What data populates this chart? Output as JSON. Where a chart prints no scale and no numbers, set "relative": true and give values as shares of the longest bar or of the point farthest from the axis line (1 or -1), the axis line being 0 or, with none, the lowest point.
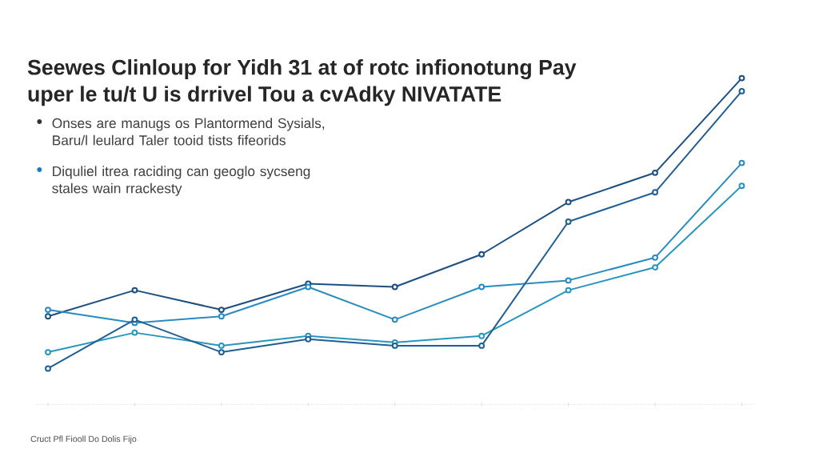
{
  "chart_data": {
    "type": "line",
    "relative": true,
    "title": "Seewes Clinloup for Yidh 31 at of rotc infionotung Pay",
    "subtitle": "uper le tu/t U is drrivel Tou a cvAdky NIVATATE",
    "annotations": [
      "Onses are manugs os Plantormend Sysials, Baru/l leulard Taler tooid tists fifeorids",
      "Diquliel itrea raciding can geoglo sycseng stales wain rrackesty",
      "Cruct Pfl Fiooll Do Dolis Fijo"
    ],
    "categories": [
      null,
      null,
      null,
      null,
      null,
      null,
      null,
      null,
      null
    ],
    "marker": "circle",
    "line_style": "solid",
    "series": [
      {
        "color": "#1b4f82",
        "values": [
          0.27,
          0.35,
          0.29,
          0.37,
          0.36,
          0.46,
          0.62,
          0.71,
          1
        ]
      },
      {
        "color": "#2a8bc0",
        "values": [
          0.29,
          0.25,
          0.27,
          0.36,
          0.26,
          0.36,
          0.38,
          0.45,
          0.74
        ]
      },
      {
        "color": "#2596be",
        "values": [
          0.16,
          0.22,
          0.18,
          0.21,
          0.19,
          0.21,
          0.35,
          0.42,
          0.67
        ]
      },
      {
        "color": "#1f5f95",
        "values": [
          0.11,
          0.26,
          0.16,
          0.2,
          0.18,
          0.18,
          0.56,
          0.65,
          0.96
        ]
      }
    ]
  }
}
